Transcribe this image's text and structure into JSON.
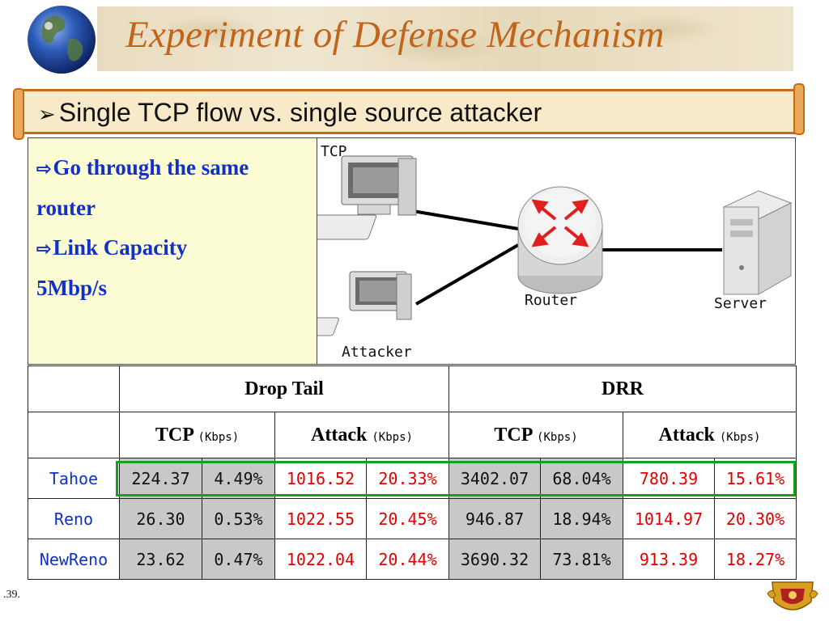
{
  "title": "Experiment of Defense Mechanism",
  "subtitle": "Single TCP flow vs. single source attacker",
  "note": {
    "line1": "Go through the same",
    "line2": "router",
    "line3": "Link Capacity",
    "line4": "5Mbp/s"
  },
  "diagram": {
    "tcp_label": "TCP",
    "router_label": "Router",
    "server_label": "Server",
    "attacker_label": "Attacker"
  },
  "table": {
    "group1": "Drop Tail",
    "group2": "DRR",
    "tcp": "TCP",
    "attack": "Attack",
    "unit": "(Kbps)",
    "rows": [
      {
        "name": "Tahoe",
        "c": [
          "224.37",
          "4.49%",
          "1016.52",
          "20.33%",
          "3402.07",
          "68.04%",
          "780.39",
          "15.61%"
        ]
      },
      {
        "name": "Reno",
        "c": [
          "26.30",
          "0.53%",
          "1022.55",
          "20.45%",
          "946.87",
          "18.94%",
          "1014.97",
          "20.30%"
        ]
      },
      {
        "name": "NewReno",
        "c": [
          "23.62",
          "0.47%",
          "1022.04",
          "20.44%",
          "3690.32",
          "73.81%",
          "913.39",
          "18.27%"
        ]
      }
    ]
  },
  "page_number": ".39.",
  "colors": {
    "title": "#c0651a",
    "note_text": "#1030c8",
    "attack_values": "#e00000",
    "highlight_box": "#17a01e"
  },
  "icons": [
    "globe-icon",
    "computer-icon",
    "router-icon",
    "server-icon",
    "university-crest-icon"
  ]
}
